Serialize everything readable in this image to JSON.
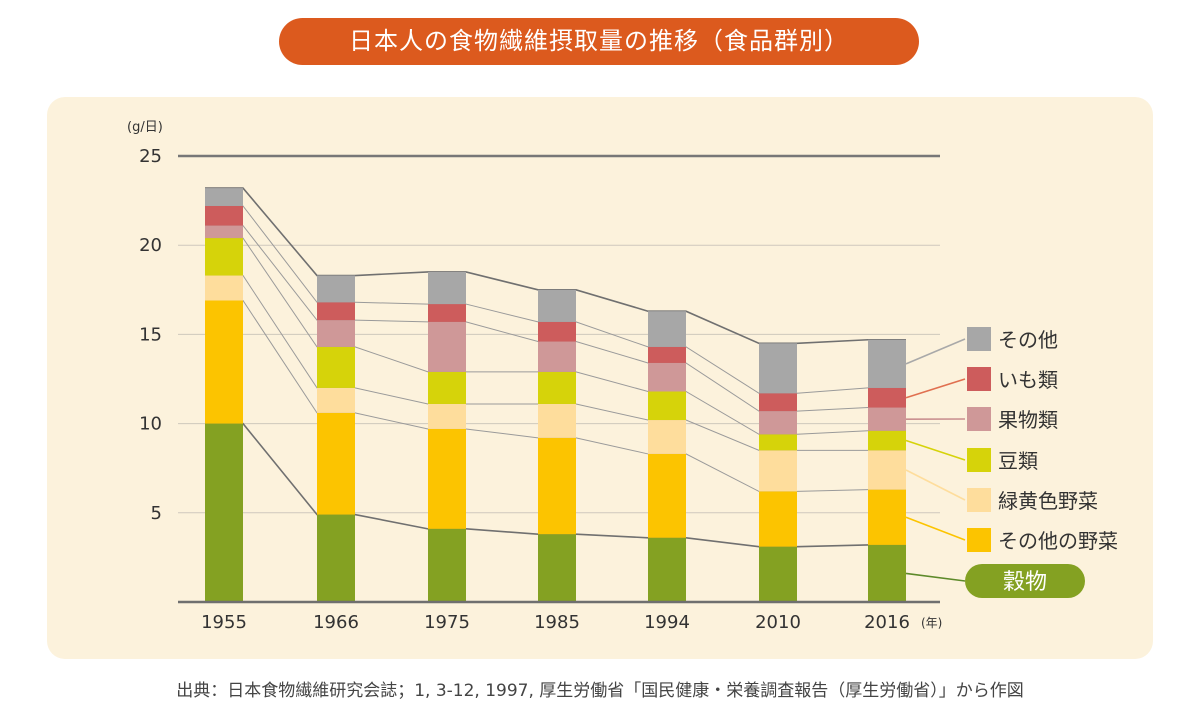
{
  "chart_data": {
    "type": "bar",
    "stacked": true,
    "title": "日本人の食物繊維摂取量の推移（食品群別）",
    "y_unit_label": "(g/日)",
    "x_unit_label": "(年)",
    "ylim": [
      0,
      25
    ],
    "yticks": [
      5,
      10,
      15,
      20,
      25
    ],
    "grid": true,
    "legend_position": "right",
    "categories": [
      "1955",
      "1966",
      "1975",
      "1985",
      "1994",
      "2010",
      "2016"
    ],
    "series": [
      {
        "name": "穀物",
        "color": "#84a122",
        "values": [
          10.0,
          4.9,
          4.1,
          3.8,
          3.6,
          3.1,
          3.2
        ]
      },
      {
        "name": "その他の野菜",
        "color": "#fcc400",
        "values": [
          6.9,
          5.7,
          5.6,
          5.4,
          4.7,
          3.1,
          3.1
        ]
      },
      {
        "name": "緑黄色野菜",
        "color": "#fedd9c",
        "values": [
          1.4,
          1.4,
          1.4,
          1.9,
          1.9,
          2.3,
          2.2
        ]
      },
      {
        "name": "豆類",
        "color": "#d6d30a",
        "values": [
          2.1,
          2.3,
          1.8,
          1.8,
          1.6,
          0.9,
          1.1
        ]
      },
      {
        "name": "果物類",
        "color": "#cf9898",
        "values": [
          0.7,
          1.5,
          2.8,
          1.7,
          1.6,
          1.3,
          1.3
        ]
      },
      {
        "name": "いも類",
        "color": "#cd5c5c",
        "values": [
          1.1,
          1.0,
          1.0,
          1.1,
          0.9,
          1.0,
          1.1
        ]
      },
      {
        "name": "その他",
        "color": "#a7a7a7",
        "values": [
          1.0,
          1.5,
          1.8,
          1.8,
          2.0,
          2.8,
          2.7
        ]
      }
    ]
  },
  "source": "出典：日本食物繊維研究会誌；1, 3-12, 1997, 厚生労働省「国民健康・栄養調査報告（厚生労働省）」から作図"
}
